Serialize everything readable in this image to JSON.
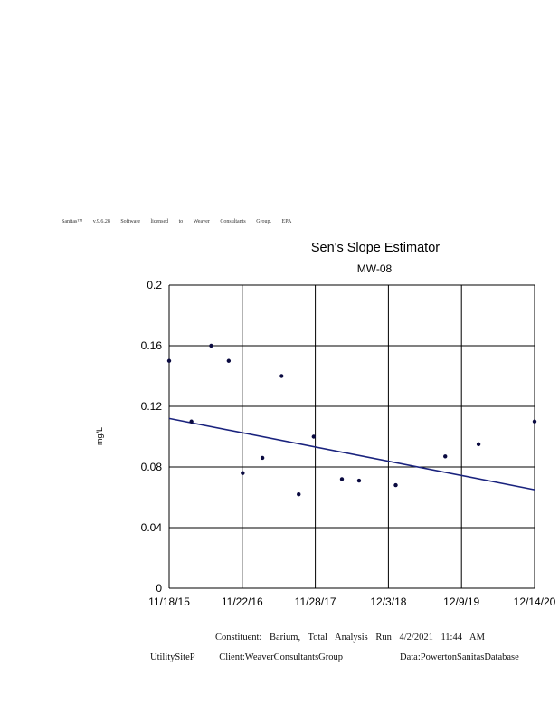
{
  "header": {
    "software_line": "Sanitas™ v.9.6.28 Software licensed to Weaver Consultants Group. EPA"
  },
  "chart_data": {
    "type": "scatter",
    "title": "Sen's Slope Estimator",
    "subtitle": "MW-08",
    "ylabel": "mg/L",
    "xlabel": "",
    "ylim": [
      0,
      0.2
    ],
    "yticks": [
      "0",
      "0.04",
      "0.08",
      "0.12",
      "0.16",
      "0.2"
    ],
    "xticks": [
      "11/18/15",
      "11/22/16",
      "11/28/17",
      "12/3/18",
      "12/9/19",
      "12/14/20"
    ],
    "xlim": [
      "2015-11-18",
      "2020-12-14"
    ],
    "grid": true,
    "series": [
      {
        "points": [
          {
            "x": "2015-11-18",
            "y": 0.15
          },
          {
            "x": "2016-03-10",
            "y": 0.11
          },
          {
            "x": "2016-06-18",
            "y": 0.16
          },
          {
            "x": "2016-09-15",
            "y": 0.15
          },
          {
            "x": "2016-11-25",
            "y": 0.076
          },
          {
            "x": "2017-03-05",
            "y": 0.086
          },
          {
            "x": "2017-06-10",
            "y": 0.14
          },
          {
            "x": "2017-09-05",
            "y": 0.062
          },
          {
            "x": "2017-11-20",
            "y": 0.1
          },
          {
            "x": "2018-04-12",
            "y": 0.072
          },
          {
            "x": "2018-07-08",
            "y": 0.071
          },
          {
            "x": "2019-01-10",
            "y": 0.068
          },
          {
            "x": "2019-09-18",
            "y": 0.087
          },
          {
            "x": "2020-03-05",
            "y": 0.095
          },
          {
            "x": "2020-12-14",
            "y": 0.11
          }
        ]
      }
    ],
    "trend_line": {
      "start": {
        "x": "2015-11-18",
        "y": 0.112
      },
      "end": {
        "x": "2020-12-14",
        "y": 0.065
      }
    },
    "colors": {
      "points": "#0a0a40",
      "trend": "#1a237e",
      "grid": "#000000"
    }
  },
  "footer": {
    "line1": "Constituent: Barium, Total Analysis Run 4/2/2021 11:44 AM",
    "line2_left": "UtilitySiteP",
    "line2_mid": "Client:WeaverConsultantsGroup",
    "line2_right": "Data:PowertonSanitasDatabase"
  }
}
